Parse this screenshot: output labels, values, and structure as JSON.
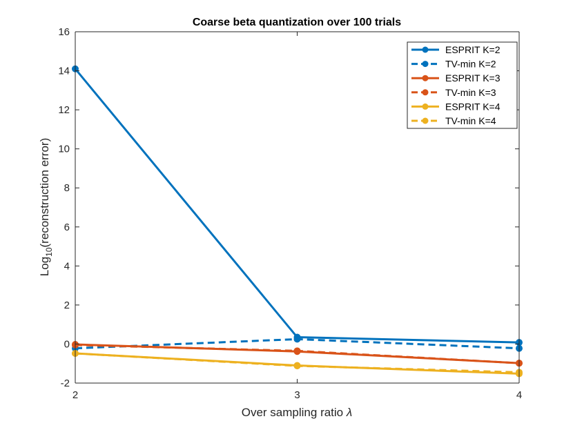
{
  "chart_data": {
    "type": "line",
    "title": "Coarse beta quantization over 100 trials",
    "xlabel_prefix": "Over sampling ratio ",
    "xlabel_symbol": "λ",
    "ylabel_prefix": "Log",
    "ylabel_sub": "10",
    "ylabel_suffix": "(reconstruction error)",
    "x": [
      2,
      3,
      4
    ],
    "xlim": [
      2,
      4
    ],
    "ylim": [
      -2,
      16
    ],
    "xticks": [
      2,
      3,
      4
    ],
    "yticks": [
      -2,
      0,
      2,
      4,
      6,
      8,
      10,
      12,
      14,
      16
    ],
    "grid": false,
    "legend_position": "top-right",
    "series": [
      {
        "name": "ESPRIT K=2",
        "values": [
          14.1,
          0.35,
          0.08
        ],
        "color": "#0072BD",
        "dash": "solid"
      },
      {
        "name": "TV-min K=2",
        "values": [
          -0.22,
          0.25,
          -0.22
        ],
        "color": "#0072BD",
        "dash": "dashed"
      },
      {
        "name": "ESPRIT K=3",
        "values": [
          -0.02,
          -0.38,
          -0.98
        ],
        "color": "#D95319",
        "dash": "solid"
      },
      {
        "name": "TV-min K=3",
        "values": [
          -0.05,
          -0.35,
          -0.98
        ],
        "color": "#D95319",
        "dash": "dashed"
      },
      {
        "name": "ESPRIT K=4",
        "values": [
          -0.48,
          -1.1,
          -1.52
        ],
        "color": "#EDB120",
        "dash": "solid"
      },
      {
        "name": "TV-min K=4",
        "values": [
          -0.48,
          -1.12,
          -1.45
        ],
        "color": "#EDB120",
        "dash": "dashed"
      }
    ]
  }
}
